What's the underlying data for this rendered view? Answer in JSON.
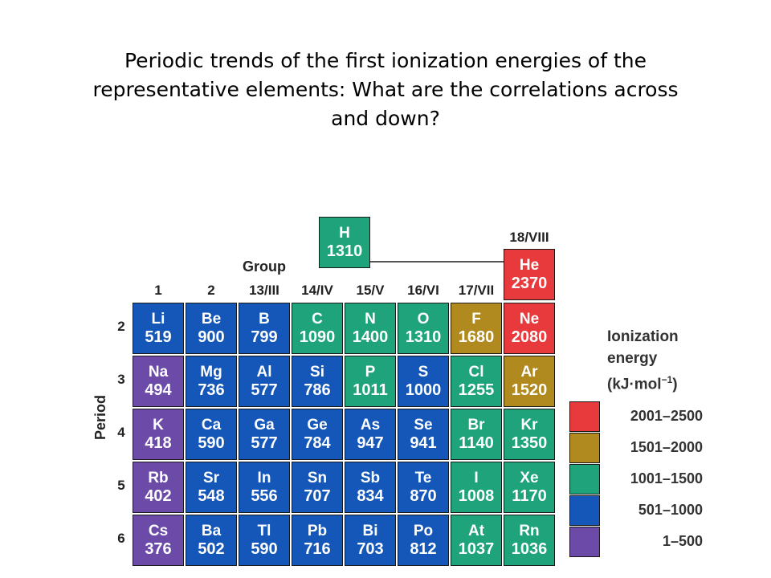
{
  "title": {
    "line1": "Periodic trends of the first ionization energies of the",
    "line2": "representative elements:  What are the correlations across",
    "line3": "and down?"
  },
  "table": {
    "group_heading": "Group",
    "period_heading": "Period",
    "groups": [
      "1",
      "2",
      "13/III",
      "14/IV",
      "15/V",
      "16/VI",
      "17/VII",
      "18/VIII"
    ],
    "periods": [
      "2",
      "3",
      "4",
      "5",
      "6"
    ],
    "hydrogen": {
      "symbol": "H",
      "ie": "1310",
      "category": "c1001_1500"
    },
    "helium": {
      "symbol": "He",
      "ie": "2370",
      "category": "c2001_2500"
    },
    "rows": [
      [
        {
          "symbol": "Li",
          "ie": "519",
          "category": "c501_1000"
        },
        {
          "symbol": "Be",
          "ie": "900",
          "category": "c501_1000"
        },
        {
          "symbol": "B",
          "ie": "799",
          "category": "c501_1000"
        },
        {
          "symbol": "C",
          "ie": "1090",
          "category": "c1001_1500"
        },
        {
          "symbol": "N",
          "ie": "1400",
          "category": "c1001_1500"
        },
        {
          "symbol": "O",
          "ie": "1310",
          "category": "c1001_1500"
        },
        {
          "symbol": "F",
          "ie": "1680",
          "category": "c1501_2000"
        },
        {
          "symbol": "Ne",
          "ie": "2080",
          "category": "c2001_2500"
        }
      ],
      [
        {
          "symbol": "Na",
          "ie": "494",
          "category": "c1_500"
        },
        {
          "symbol": "Mg",
          "ie": "736",
          "category": "c501_1000"
        },
        {
          "symbol": "Al",
          "ie": "577",
          "category": "c501_1000"
        },
        {
          "symbol": "Si",
          "ie": "786",
          "category": "c501_1000"
        },
        {
          "symbol": "P",
          "ie": "1011",
          "category": "c1001_1500"
        },
        {
          "symbol": "S",
          "ie": "1000",
          "category": "c501_1000"
        },
        {
          "symbol": "Cl",
          "ie": "1255",
          "category": "c1001_1500"
        },
        {
          "symbol": "Ar",
          "ie": "1520",
          "category": "c1501_2000"
        }
      ],
      [
        {
          "symbol": "K",
          "ie": "418",
          "category": "c1_500"
        },
        {
          "symbol": "Ca",
          "ie": "590",
          "category": "c501_1000"
        },
        {
          "symbol": "Ga",
          "ie": "577",
          "category": "c501_1000"
        },
        {
          "symbol": "Ge",
          "ie": "784",
          "category": "c501_1000"
        },
        {
          "symbol": "As",
          "ie": "947",
          "category": "c501_1000"
        },
        {
          "symbol": "Se",
          "ie": "941",
          "category": "c501_1000"
        },
        {
          "symbol": "Br",
          "ie": "1140",
          "category": "c1001_1500"
        },
        {
          "symbol": "Kr",
          "ie": "1350",
          "category": "c1001_1500"
        }
      ],
      [
        {
          "symbol": "Rb",
          "ie": "402",
          "category": "c1_500"
        },
        {
          "symbol": "Sr",
          "ie": "548",
          "category": "c501_1000"
        },
        {
          "symbol": "In",
          "ie": "556",
          "category": "c501_1000"
        },
        {
          "symbol": "Sn",
          "ie": "707",
          "category": "c501_1000"
        },
        {
          "symbol": "Sb",
          "ie": "834",
          "category": "c501_1000"
        },
        {
          "symbol": "Te",
          "ie": "870",
          "category": "c501_1000"
        },
        {
          "symbol": "I",
          "ie": "1008",
          "category": "c1001_1500"
        },
        {
          "symbol": "Xe",
          "ie": "1170",
          "category": "c1001_1500"
        }
      ],
      [
        {
          "symbol": "Cs",
          "ie": "376",
          "category": "c1_500"
        },
        {
          "symbol": "Ba",
          "ie": "502",
          "category": "c501_1000"
        },
        {
          "symbol": "Tl",
          "ie": "590",
          "category": "c501_1000"
        },
        {
          "symbol": "Pb",
          "ie": "716",
          "category": "c501_1000"
        },
        {
          "symbol": "Bi",
          "ie": "703",
          "category": "c501_1000"
        },
        {
          "symbol": "Po",
          "ie": "812",
          "category": "c501_1000"
        },
        {
          "symbol": "At",
          "ie": "1037",
          "category": "c1001_1500"
        },
        {
          "symbol": "Rn",
          "ie": "1036",
          "category": "c1001_1500"
        }
      ]
    ]
  },
  "legend": {
    "title_line1": "Ionization",
    "title_line2": "energy",
    "title_line3": "(kJ·mol",
    "title_exp": "−1",
    "title_close": ")",
    "items": [
      {
        "key": "c2001_2500",
        "label": "2001–2500",
        "color": "#e8393c"
      },
      {
        "key": "c1501_2000",
        "label": "1501–2000",
        "color": "#b08a1f"
      },
      {
        "key": "c1001_1500",
        "label": "1001–1500",
        "color": "#1fa37a"
      },
      {
        "key": "c501_1000",
        "label": "501–1000",
        "color": "#1457b8"
      },
      {
        "key": "c1_500",
        "label": "1–500",
        "color": "#6c4aa8"
      }
    ]
  }
}
